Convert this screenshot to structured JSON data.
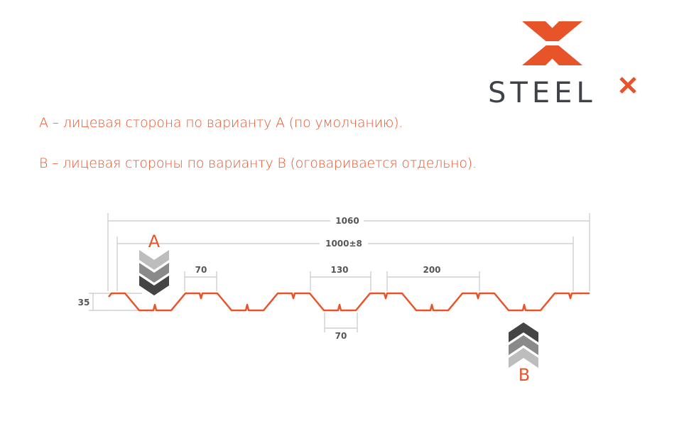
{
  "logo": {
    "text": "STEEL",
    "superscript": "x",
    "brand_color": "#e8542a",
    "text_color": "#3f4347"
  },
  "notes": [
    "A – лицевая сторона по варианту A (по умолчанию).",
    "B – лицевая стороны по варианту B (оговаривается отдельно)."
  ],
  "diagram": {
    "profile_color": "#e8542a",
    "dimension_color": "#c8c8c8",
    "dimensions": {
      "total_width": "1060",
      "working_width": "1000±8",
      "top_flange": "70",
      "rib_width": "130",
      "pitch": "200",
      "bottom_flange": "70",
      "height": "35"
    },
    "side_a_label": "A",
    "side_b_label": "B",
    "chevron_colors": [
      "#bdbdbd",
      "#8a8a8a",
      "#444444"
    ]
  }
}
